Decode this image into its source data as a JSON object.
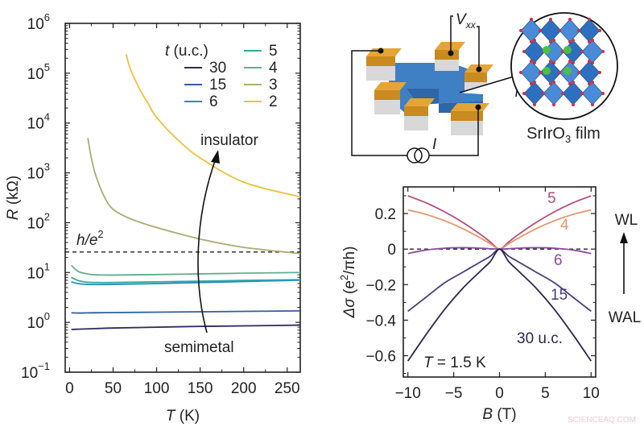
{
  "chart_data": [
    {
      "type": "line",
      "xlabel": {
        "var": "T",
        "unit": " (K)"
      },
      "ylabel": {
        "var": "R",
        "unit": " (kΩ)"
      },
      "xlim": [
        -5,
        265
      ],
      "ylim": [
        0.1,
        1000000
      ],
      "yscale": "log",
      "xticks": [
        0,
        50,
        100,
        150,
        200,
        250
      ],
      "yticks": [
        {
          "base": "10",
          "exp": "6",
          "value": 1000000
        },
        {
          "base": "10",
          "exp": "5",
          "value": 100000
        },
        {
          "base": "10",
          "exp": "4",
          "value": 10000
        },
        {
          "base": "10",
          "exp": "3",
          "value": 1000
        },
        {
          "base": "10",
          "exp": "2",
          "value": 100
        },
        {
          "base": "10",
          "exp": "1",
          "value": 10
        },
        {
          "base": "10",
          "exp": "0",
          "value": 1
        },
        {
          "base": "10",
          "exp": "−1",
          "value": 0.1
        }
      ],
      "legend": {
        "title_var": "t",
        "title_unit": " (u.c.)",
        "placement": "top-right"
      },
      "reference_line": {
        "label_base": "h/e",
        "label_exp": "2",
        "value": 25.8,
        "style": "dashed"
      },
      "annotations": {
        "top": "insulator",
        "bottom": "semimetal"
      },
      "series": [
        {
          "name": "30",
          "color": "#2b2c5c",
          "x": [
            2,
            10,
            20,
            30,
            50,
            100,
            150,
            200,
            265
          ],
          "y": [
            0.72,
            0.73,
            0.74,
            0.75,
            0.77,
            0.8,
            0.83,
            0.85,
            0.88
          ]
        },
        {
          "name": "15",
          "color": "#30609c",
          "x": [
            2,
            10,
            20,
            30,
            50,
            100,
            150,
            200,
            265
          ],
          "y": [
            1.55,
            1.54,
            1.55,
            1.56,
            1.57,
            1.6,
            1.63,
            1.66,
            1.7
          ]
        },
        {
          "name": "6",
          "color": "#2b88bc",
          "x": [
            2,
            10,
            20,
            30,
            50,
            100,
            150,
            200,
            265
          ],
          "y": [
            6.5,
            6.0,
            5.8,
            5.75,
            5.8,
            6.0,
            6.3,
            6.6,
            7.0
          ]
        },
        {
          "name": "5",
          "color": "#2aaaa8",
          "x": [
            2,
            10,
            20,
            30,
            50,
            100,
            150,
            200,
            265
          ],
          "y": [
            8.0,
            6.9,
            6.4,
            6.3,
            6.3,
            6.5,
            6.7,
            6.95,
            7.2
          ]
        },
        {
          "name": "4",
          "color": "#62ae8c",
          "x": [
            2,
            10,
            20,
            30,
            50,
            100,
            150,
            200,
            265
          ],
          "y": [
            14,
            10.5,
            9.4,
            9.0,
            8.9,
            9.1,
            9.4,
            9.7,
            10
          ]
        },
        {
          "name": "3",
          "color": "#a8ad70",
          "x": [
            21,
            25,
            30,
            40,
            50,
            70,
            100,
            150,
            200,
            265
          ],
          "y": [
            5000,
            2000,
            900,
            330,
            186,
            120,
            80,
            47,
            32,
            24
          ]
        },
        {
          "name": "2",
          "color": "#f0c03c",
          "x": [
            65,
            70,
            80,
            90,
            100,
            125,
            150,
            200,
            265
          ],
          "y": [
            240000,
            120000,
            50000,
            25000,
            13000,
            4500,
            2000,
            650,
            330
          ]
        }
      ]
    },
    {
      "type": "line",
      "xlabel": {
        "var": "B",
        "unit": " (T)"
      },
      "ylabel": {
        "var": "Δσ",
        "unit_pre": " (e",
        "unit_exp": "2",
        "unit_post": "/πh)"
      },
      "xlim": [
        -10.5,
        10.5
      ],
      "ylim": [
        -0.72,
        0.35
      ],
      "xticks": [
        {
          "value": -10,
          "label": "−10"
        },
        {
          "value": -5,
          "label": "−5"
        },
        {
          "value": 0,
          "label": "0"
        },
        {
          "value": 5,
          "label": "5"
        },
        {
          "value": 10,
          "label": "10"
        }
      ],
      "yticks": [
        {
          "value": 0.2,
          "label": "0.2"
        },
        {
          "value": 0,
          "label": "0"
        },
        {
          "value": -0.2,
          "label": "−0.2"
        },
        {
          "value": -0.4,
          "label": "−0.4"
        },
        {
          "value": -0.6,
          "label": "−0.6"
        }
      ],
      "reference_line": {
        "value": 0,
        "style": "dashed"
      },
      "annotations": {
        "condition_var": "T",
        "condition_val": " = 1.5 K",
        "arrow_top": "WL",
        "arrow_bottom": "WAL"
      },
      "series": [
        {
          "name": "5",
          "color": "#b44c7c",
          "x": [
            -10,
            -8,
            -6,
            -4,
            -2,
            -1,
            0,
            1,
            2,
            4,
            6,
            8,
            10
          ],
          "y": [
            0.3,
            0.26,
            0.21,
            0.15,
            0.08,
            0.04,
            0,
            0.04,
            0.08,
            0.15,
            0.21,
            0.26,
            0.3
          ]
        },
        {
          "name": "4",
          "color": "#e8956a",
          "x": [
            -10,
            -8,
            -6,
            -4,
            -2,
            -1,
            0,
            1,
            2,
            4,
            6,
            8,
            10
          ],
          "y": [
            0.22,
            0.195,
            0.16,
            0.115,
            0.06,
            0.03,
            0,
            0.03,
            0.06,
            0.115,
            0.16,
            0.195,
            0.22
          ]
        },
        {
          "name": "6",
          "color": "#8c4c9c",
          "x": [
            -10,
            -8,
            -6,
            -4,
            -2,
            -1,
            0,
            1,
            2,
            4,
            6,
            8,
            10
          ],
          "y": [
            -0.025,
            -0.005,
            0.005,
            0.008,
            0.005,
            0.002,
            0,
            0.002,
            0.005,
            0.008,
            0.005,
            -0.005,
            -0.025
          ]
        },
        {
          "name": "15",
          "color": "#4c3c7c",
          "x": [
            -10,
            -8,
            -6,
            -4,
            -2,
            -1,
            0,
            1,
            2,
            4,
            6,
            8,
            10
          ],
          "y": [
            -0.35,
            -0.27,
            -0.19,
            -0.13,
            -0.07,
            -0.04,
            0,
            -0.04,
            -0.07,
            -0.13,
            -0.19,
            -0.27,
            -0.35
          ]
        },
        {
          "name": "30 u.c.",
          "color": "#2a2850",
          "x": [
            -10,
            -8,
            -6,
            -4,
            -2,
            -1,
            0,
            1,
            2,
            4,
            6,
            8,
            10
          ],
          "y": [
            -0.63,
            -0.48,
            -0.34,
            -0.22,
            -0.12,
            -0.07,
            0,
            -0.07,
            -0.12,
            -0.22,
            -0.34,
            -0.48,
            -0.63
          ]
        }
      ]
    }
  ],
  "diagram": {
    "voltage_label_base": "V",
    "voltage_label_sub": "xx",
    "current_label": "I",
    "film_label_pre": "SrIrO",
    "film_label_sub": "3",
    "film_label_post": " film",
    "colors": {
      "film": "#3f7fc4",
      "pad": "#e4a534",
      "substrate": "#d8d8d8",
      "octahedra": "#2e6fc0",
      "sr_atom": "#4cc040",
      "o_atom": "#c8324a"
    }
  },
  "watermark": "SCIENCEAQ.COM"
}
